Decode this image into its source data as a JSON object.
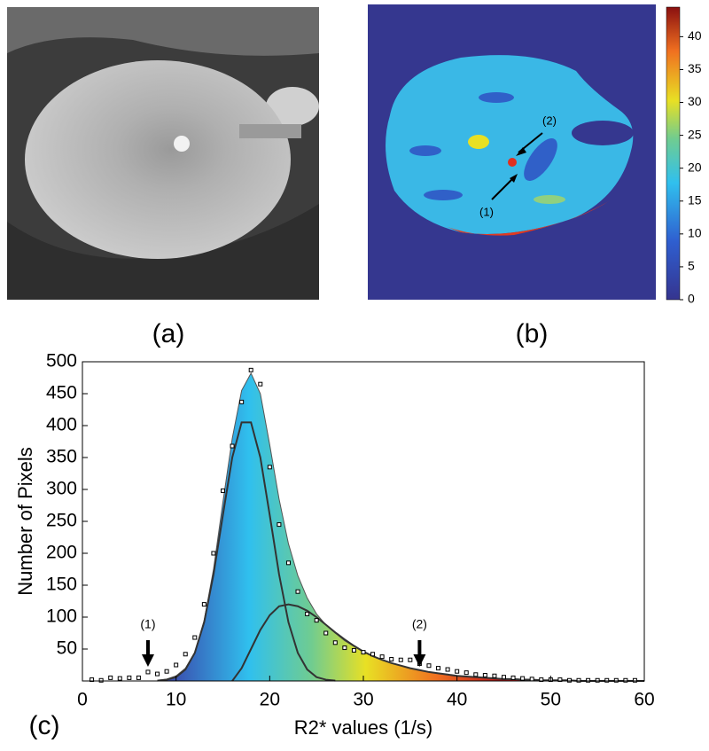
{
  "panel_labels": [
    "(a)",
    "(b)",
    "(c)"
  ],
  "map_annotations": [
    "(1)",
    "(2)"
  ],
  "colorbar": {
    "lim": [
      0,
      44.5
    ],
    "ticks": [
      0,
      5,
      10,
      15,
      20,
      25,
      30,
      35,
      40
    ]
  },
  "chart_data": {
    "type": "line",
    "xlabel": "R2* values (1/s)",
    "ylabel": "Number of Pixels",
    "xlim": [
      0,
      60
    ],
    "ylim": [
      0,
      500
    ],
    "xticks": [
      0,
      10,
      20,
      30,
      40,
      50,
      60
    ],
    "yticks": [
      50,
      100,
      150,
      200,
      250,
      300,
      350,
      400,
      450,
      500
    ],
    "fill_colormap": "jet",
    "annotations": [
      {
        "text": "(1)",
        "x": 7
      },
      {
        "text": "(2)",
        "x": 36
      }
    ],
    "series": [
      {
        "style": "markers",
        "color": "#000000",
        "x": [
          1,
          2,
          3,
          4,
          5,
          6,
          7,
          8,
          9,
          10,
          11,
          12,
          13,
          14,
          15,
          16,
          17,
          18,
          19,
          20,
          21,
          22,
          23,
          24,
          25,
          26,
          27,
          28,
          29,
          30,
          31,
          32,
          33,
          34,
          35,
          36,
          37,
          38,
          39,
          40,
          41,
          42,
          43,
          44,
          45,
          46,
          47,
          48,
          49,
          50,
          51,
          52,
          53,
          54,
          55,
          56,
          57,
          58,
          59
        ],
        "values": [
          2,
          1,
          5,
          4,
          5,
          5,
          14,
          11,
          15,
          25,
          42,
          68,
          120,
          200,
          298,
          368,
          437,
          487,
          465,
          335,
          245,
          185,
          140,
          105,
          95,
          75,
          60,
          52,
          48,
          45,
          42,
          38,
          34,
          33,
          33,
          27,
          24,
          20,
          18,
          15,
          13,
          10,
          9,
          8,
          6,
          5,
          4,
          3,
          2,
          2,
          2,
          1,
          1,
          1,
          1,
          1,
          1,
          1,
          1
        ]
      },
      {
        "style": "filled-line",
        "color": "#555555",
        "x": [
          8,
          9,
          10,
          11,
          12,
          13,
          14,
          15,
          16,
          17,
          18,
          19,
          20,
          21,
          22,
          23,
          24,
          25,
          26,
          27,
          28,
          29,
          30,
          31,
          32,
          33,
          34,
          35,
          36,
          37,
          38,
          39,
          40,
          41,
          42,
          43,
          44,
          45,
          46,
          47,
          48,
          49,
          50,
          51,
          52,
          53,
          54,
          55,
          56,
          57,
          58,
          59,
          60
        ],
        "values": [
          1,
          3,
          8,
          20,
          45,
          95,
          175,
          280,
          380,
          455,
          482,
          450,
          370,
          285,
          215,
          165,
          130,
          105,
          88,
          75,
          63,
          54,
          46,
          39,
          33,
          28,
          24,
          20,
          17,
          14,
          12,
          10,
          8,
          7,
          6,
          5,
          4,
          3,
          3,
          2,
          2,
          1,
          1,
          1,
          0,
          0,
          0,
          0,
          0,
          0,
          0,
          0,
          0
        ]
      },
      {
        "style": "line",
        "color": "#333333",
        "x": [
          8,
          9,
          10,
          11,
          12,
          13,
          14,
          15,
          16,
          17,
          18,
          19,
          20,
          21,
          22,
          23,
          24,
          25,
          26,
          27
        ],
        "values": [
          0.5,
          2,
          6,
          18,
          44,
          92,
          167,
          260,
          350,
          405,
          405,
          350,
          260,
          167,
          92,
          44,
          18,
          6,
          2,
          0.5
        ]
      },
      {
        "style": "line",
        "color": "#333333",
        "x": [
          16,
          17,
          18,
          19,
          20,
          21,
          22,
          23,
          24,
          25,
          26,
          27,
          28,
          29,
          30,
          31,
          32,
          33,
          34,
          35,
          36,
          37,
          38,
          39,
          40,
          41,
          42,
          43,
          44,
          45,
          46,
          47,
          48,
          49,
          50,
          51,
          52,
          53,
          54,
          55,
          56,
          57,
          58,
          59,
          60
        ],
        "values": [
          0,
          20,
          50,
          80,
          103,
          117,
          120,
          117,
          110,
          100,
          88,
          76,
          65,
          55,
          46,
          39,
          33,
          28,
          24,
          20,
          17,
          14,
          12,
          10,
          8,
          7,
          6,
          5,
          4,
          3,
          3,
          2,
          2,
          1,
          1,
          1,
          1,
          0,
          0,
          0,
          0,
          0,
          0,
          0,
          0
        ]
      }
    ]
  }
}
